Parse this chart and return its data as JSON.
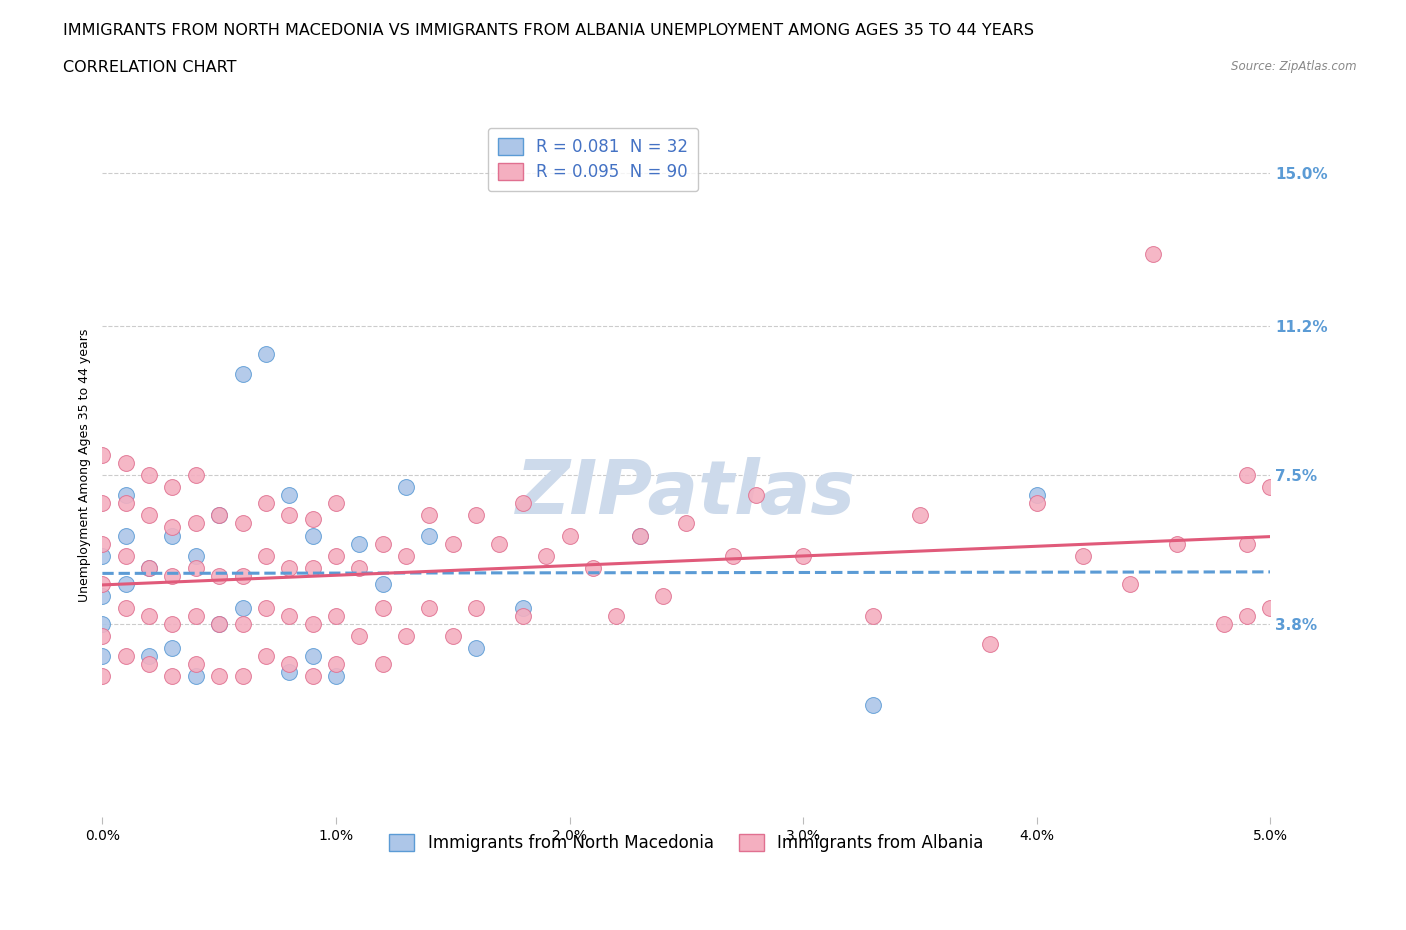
{
  "title_line1": "IMMIGRANTS FROM NORTH MACEDONIA VS IMMIGRANTS FROM ALBANIA UNEMPLOYMENT AMONG AGES 35 TO 44 YEARS",
  "title_line2": "CORRELATION CHART",
  "source": "Source: ZipAtlas.com",
  "ylabel": "Unemployment Among Ages 35 to 44 years",
  "xlim": [
    0.0,
    0.05
  ],
  "ylim": [
    -0.01,
    0.165
  ],
  "yticks": [
    0.038,
    0.075,
    0.112,
    0.15
  ],
  "ytick_labels": [
    "3.8%",
    "7.5%",
    "11.2%",
    "15.0%"
  ],
  "xticks": [
    0.0,
    0.01,
    0.02,
    0.03,
    0.04,
    0.05
  ],
  "xtick_labels": [
    "0.0%",
    "1.0%",
    "2.0%",
    "3.0%",
    "4.0%",
    "5.0%"
  ],
  "series": [
    {
      "name": "Immigrants from North Macedonia",
      "R": "0.081",
      "N": "32",
      "color": "#adc6e8",
      "edge_color": "#5b9bd5",
      "trend_color": "#5b9bd5",
      "trend_style": "--",
      "x": [
        0.0,
        0.0,
        0.0,
        0.0,
        0.001,
        0.001,
        0.001,
        0.002,
        0.002,
        0.003,
        0.003,
        0.004,
        0.004,
        0.005,
        0.005,
        0.006,
        0.006,
        0.007,
        0.008,
        0.008,
        0.009,
        0.009,
        0.01,
        0.011,
        0.012,
        0.013,
        0.014,
        0.016,
        0.018,
        0.023,
        0.033,
        0.04
      ],
      "y": [
        0.03,
        0.038,
        0.045,
        0.055,
        0.048,
        0.06,
        0.07,
        0.03,
        0.052,
        0.032,
        0.06,
        0.025,
        0.055,
        0.038,
        0.065,
        0.042,
        0.1,
        0.105,
        0.026,
        0.07,
        0.03,
        0.06,
        0.025,
        0.058,
        0.048,
        0.072,
        0.06,
        0.032,
        0.042,
        0.06,
        0.018,
        0.07
      ]
    },
    {
      "name": "Immigrants from Albania",
      "R": "0.095",
      "N": "90",
      "color": "#f4afc0",
      "edge_color": "#e07090",
      "trend_color": "#e05a7a",
      "trend_style": "-",
      "x": [
        0.0,
        0.0,
        0.0,
        0.0,
        0.0,
        0.0,
        0.001,
        0.001,
        0.001,
        0.001,
        0.001,
        0.002,
        0.002,
        0.002,
        0.002,
        0.002,
        0.003,
        0.003,
        0.003,
        0.003,
        0.003,
        0.004,
        0.004,
        0.004,
        0.004,
        0.004,
        0.005,
        0.005,
        0.005,
        0.005,
        0.006,
        0.006,
        0.006,
        0.006,
        0.007,
        0.007,
        0.007,
        0.007,
        0.008,
        0.008,
        0.008,
        0.008,
        0.009,
        0.009,
        0.009,
        0.009,
        0.01,
        0.01,
        0.01,
        0.01,
        0.011,
        0.011,
        0.012,
        0.012,
        0.012,
        0.013,
        0.013,
        0.014,
        0.014,
        0.015,
        0.015,
        0.016,
        0.016,
        0.017,
        0.018,
        0.018,
        0.019,
        0.02,
        0.021,
        0.022,
        0.023,
        0.024,
        0.025,
        0.027,
        0.028,
        0.03,
        0.033,
        0.035,
        0.038,
        0.04,
        0.042,
        0.044,
        0.045,
        0.046,
        0.048,
        0.049,
        0.049,
        0.049,
        0.05,
        0.05
      ],
      "y": [
        0.025,
        0.035,
        0.048,
        0.058,
        0.068,
        0.08,
        0.03,
        0.042,
        0.055,
        0.068,
        0.078,
        0.028,
        0.04,
        0.052,
        0.065,
        0.075,
        0.025,
        0.038,
        0.05,
        0.062,
        0.072,
        0.028,
        0.04,
        0.052,
        0.063,
        0.075,
        0.025,
        0.038,
        0.05,
        0.065,
        0.025,
        0.038,
        0.05,
        0.063,
        0.03,
        0.042,
        0.055,
        0.068,
        0.028,
        0.04,
        0.052,
        0.065,
        0.025,
        0.038,
        0.052,
        0.064,
        0.028,
        0.04,
        0.055,
        0.068,
        0.035,
        0.052,
        0.028,
        0.042,
        0.058,
        0.035,
        0.055,
        0.042,
        0.065,
        0.035,
        0.058,
        0.042,
        0.065,
        0.058,
        0.04,
        0.068,
        0.055,
        0.06,
        0.052,
        0.04,
        0.06,
        0.045,
        0.063,
        0.055,
        0.07,
        0.055,
        0.04,
        0.065,
        0.033,
        0.068,
        0.055,
        0.048,
        0.13,
        0.058,
        0.038,
        0.075,
        0.04,
        0.058,
        0.042,
        0.072
      ]
    }
  ],
  "watermark": "ZIPatlas",
  "watermark_color": "#cddaeb",
  "background_color": "#ffffff",
  "grid_color": "#cccccc",
  "axis_label_color": "#5b9bd5",
  "value_color": "#4472c4",
  "title_fontsize": 11.5,
  "label_fontsize": 9,
  "tick_fontsize": 10,
  "legend_fontsize": 12
}
